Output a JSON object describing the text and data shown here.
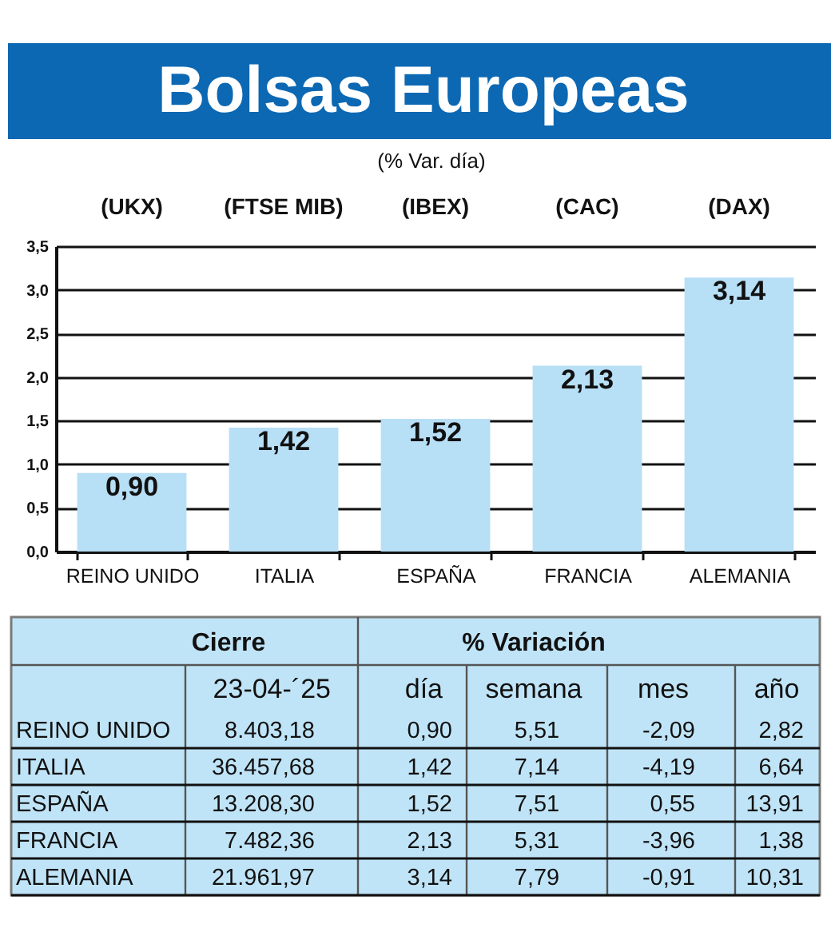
{
  "chart_data": [
    {
      "type": "bar",
      "title": "Bolsas Europeas",
      "subtitle": "(% Var. día)",
      "categories": [
        "REINO UNIDO",
        "ITALIA",
        "ESPAÑA",
        "FRANCIA",
        "ALEMANIA"
      ],
      "values": [
        0.9,
        1.42,
        1.52,
        2.13,
        3.14
      ],
      "color": "#b7dff6",
      "value_labels": [
        "0,90",
        "1,42",
        "1,52",
        "2,13",
        "3,14"
      ],
      "ylim": [
        0,
        3.5
      ],
      "yticks": [
        {
          "value": 0,
          "label": "0,0"
        },
        {
          "value": 0.5,
          "label": "0,5"
        },
        {
          "value": 1,
          "label": "1,0"
        },
        {
          "value": 1.5,
          "label": "1,5"
        },
        {
          "value": 2,
          "label": "2,0"
        },
        {
          "value": 2.5,
          "label": "2,5"
        },
        {
          "value": 3,
          "label": "3,0"
        },
        {
          "value": 3.5,
          "label": "3,5"
        }
      ],
      "grid": "y",
      "annotations": [
        "(UKX)",
        "(FTSE MIB)",
        "(IBEX)",
        "(CAC)",
        "(DAX)"
      ]
    },
    {
      "type": "other",
      "annotations": [
        "Cierre",
        "% Variación"
      ],
      "categories": [
        "23-04-´25",
        "día",
        "semana",
        "mes",
        "año"
      ],
      "y_categories": [
        "REINO UNIDO",
        "ITALIA",
        "ESPAÑA",
        "FRANCIA",
        "ALEMANIA"
      ],
      "cell_labels": [
        [
          "8.403,18",
          "0,90",
          "5,51",
          "-2,09",
          "2,82"
        ],
        [
          "36.457,68",
          "1,42",
          "7,14",
          "-4,19",
          "6,64"
        ],
        [
          "13.208,30",
          "1,52",
          "7,51",
          "0,55",
          "13,91"
        ],
        [
          "7.482,36",
          "2,13",
          "5,31",
          "-3,96",
          "1,38"
        ],
        [
          "21.961,97",
          "3,14",
          "7,79",
          "-0,91",
          "10,31"
        ]
      ]
    }
  ]
}
